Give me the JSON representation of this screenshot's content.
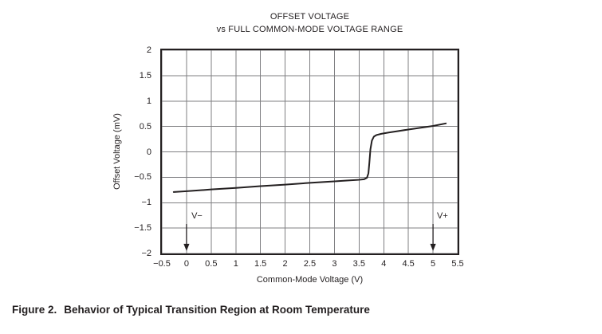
{
  "figure": {
    "caption_prefix": "Figure 2.",
    "caption_text": "Behavior of Typical Transition Region at Room Temperature"
  },
  "chart_data": {
    "type": "line",
    "title_lines": [
      "OFFSET VOLTAGE",
      "vs FULL COMMON-MODE VOLTAGE RANGE"
    ],
    "xlabel": "Common-Mode Voltage (V)",
    "ylabel": "Offset Voltage (mV)",
    "xlim": [
      -0.5,
      5.5
    ],
    "ylim": [
      -2,
      2
    ],
    "grid": true,
    "grid_step": 0.5,
    "legend": "none",
    "xticks": [
      {
        "v": -0.5,
        "label": "−0.5"
      },
      {
        "v": 0,
        "label": "0"
      },
      {
        "v": 0.5,
        "label": "0.5"
      },
      {
        "v": 1,
        "label": "1"
      },
      {
        "v": 1.5,
        "label": "1.5"
      },
      {
        "v": 2,
        "label": "2"
      },
      {
        "v": 2.5,
        "label": "2.5"
      },
      {
        "v": 3,
        "label": "3"
      },
      {
        "v": 3.5,
        "label": "3.5"
      },
      {
        "v": 4,
        "label": "4"
      },
      {
        "v": 4.5,
        "label": "4.5"
      },
      {
        "v": 5,
        "label": "5"
      },
      {
        "v": 5.5,
        "label": "5.5"
      }
    ],
    "yticks": [
      {
        "v": 2,
        "label": "2"
      },
      {
        "v": 1.5,
        "label": "1.5"
      },
      {
        "v": 1,
        "label": "1"
      },
      {
        "v": 0.5,
        "label": "0.5"
      },
      {
        "v": 0,
        "label": "0"
      },
      {
        "v": -0.5,
        "label": "−0.5"
      },
      {
        "v": -1,
        "label": "−1"
      },
      {
        "v": -1.5,
        "label": "−1.5"
      },
      {
        "v": -2,
        "label": "−2"
      }
    ],
    "series": [
      {
        "name": "offset-voltage-vs-common-mode",
        "color": "#231f20",
        "points": [
          [
            -0.26,
            -0.79
          ],
          [
            0,
            -0.775
          ],
          [
            0.5,
            -0.74
          ],
          [
            1,
            -0.71
          ],
          [
            1.5,
            -0.675
          ],
          [
            2,
            -0.645
          ],
          [
            2.5,
            -0.61
          ],
          [
            3,
            -0.58
          ],
          [
            3.25,
            -0.565
          ],
          [
            3.5,
            -0.55
          ],
          [
            3.6,
            -0.54
          ],
          [
            3.66,
            -0.51
          ],
          [
            3.69,
            -0.42
          ],
          [
            3.71,
            -0.2
          ],
          [
            3.73,
            0.05
          ],
          [
            3.76,
            0.22
          ],
          [
            3.8,
            0.3
          ],
          [
            3.85,
            0.33
          ],
          [
            3.95,
            0.355
          ],
          [
            4.1,
            0.38
          ],
          [
            4.3,
            0.41
          ],
          [
            4.5,
            0.44
          ],
          [
            4.75,
            0.475
          ],
          [
            5,
            0.51
          ],
          [
            5.26,
            0.56
          ]
        ]
      }
    ],
    "annotations": [
      {
        "name": "v-minus",
        "label": "V−",
        "x": 0,
        "label_x": 0.1,
        "label_y": -1.31,
        "arrow_y1": -1.42,
        "arrow_y2": -1.95
      },
      {
        "name": "v-plus",
        "label": "V+",
        "x": 5,
        "label_x": 5.08,
        "label_y": -1.31,
        "arrow_y1": -1.42,
        "arrow_y2": -1.95
      }
    ],
    "colors": {
      "grid": "#7f7f82",
      "axis": "#231f20",
      "curve": "#231f20",
      "text": "#231f20"
    }
  }
}
